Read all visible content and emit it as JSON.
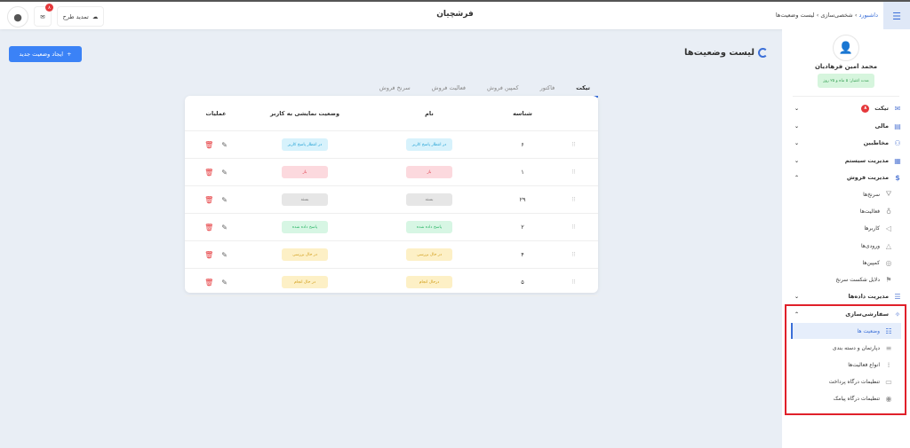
{
  "header": {
    "app_title": "فرشچیان",
    "breadcrumb": [
      "داشبورد",
      "شخصی‌سازی",
      "لیست وضعیت‌ها"
    ],
    "update_plan_label": "تمدید طرح",
    "mail_badge": "۸"
  },
  "profile": {
    "name": "محمد امین فرهادیان",
    "validity": "مدت اعتبار: ۵ ماه و ۲۵ روز"
  },
  "sidebar": {
    "items": [
      {
        "label": "تیکت",
        "icon": "mail-icon",
        "badge": "۸",
        "chevron": "down"
      },
      {
        "label": "مالی",
        "icon": "wallet-icon",
        "chevron": "down"
      },
      {
        "label": "مخاطبین",
        "icon": "users-icon",
        "chevron": "down"
      },
      {
        "label": "مدیریت سیستم",
        "icon": "table-icon",
        "chevron": "down"
      },
      {
        "label": "مدیریت فروش",
        "icon": "dollar-icon",
        "chevron": "up"
      },
      {
        "label": "سرنخ‌ها",
        "icon": "funnel-icon",
        "sub": true
      },
      {
        "label": "فعالیت‌ها",
        "icon": "bulb-icon",
        "sub": true
      },
      {
        "label": "کاربرها",
        "icon": "megaphone-icon",
        "sub": true
      },
      {
        "label": "ورودی‌ها",
        "icon": "triangle-icon",
        "sub": true
      },
      {
        "label": "کمپین‌ها",
        "icon": "target-icon",
        "sub": true
      },
      {
        "label": "دلایل شکست سرنخ",
        "icon": "flag-icon",
        "sub": true
      },
      {
        "label": "مدیریت داده‌ها",
        "icon": "database-icon",
        "chevron": "down"
      },
      {
        "label": "سفارشی‌سازی",
        "icon": "wand-icon",
        "chevron": "up"
      },
      {
        "label": "وضعیت ها",
        "icon": "list-icon",
        "sub": true,
        "active": true
      },
      {
        "label": "دپارتمان و دسته بندی",
        "icon": "lines-icon",
        "sub": true
      },
      {
        "label": "انواع فعالیت‌ها",
        "icon": "grid-icon",
        "sub": true
      },
      {
        "label": "تنظیمات درگاه پرداخت",
        "icon": "card-icon",
        "sub": true
      },
      {
        "label": "تنظیمات درگاه پیامک",
        "icon": "message-icon",
        "sub": true
      }
    ]
  },
  "main": {
    "title": "لیست وضعیت‌ها",
    "new_button": "ایجاد وضعیت جدید",
    "tabs": [
      "تیکت",
      "فاکتور",
      "کمپین فروش",
      "فعالیت فروش",
      "سرنخ فروش"
    ],
    "columns": [
      "شناسه",
      "نام",
      "وضعیت نمایشی به کاربر",
      "عملیات"
    ],
    "rows": [
      {
        "id": "۶",
        "name": "در انتظار پاسخ کاربر",
        "display": "در انتظار پاسخ کاربر",
        "color": "blue"
      },
      {
        "id": "۱",
        "name": "باز",
        "display": "باز",
        "color": "red"
      },
      {
        "id": "۲۹",
        "name": "بسته",
        "display": "بسته",
        "color": "gray"
      },
      {
        "id": "۲",
        "name": "پاسخ داده شده",
        "display": "پاسخ داده شده",
        "color": "green"
      },
      {
        "id": "۴",
        "name": "در حال بررسی",
        "display": "در حال بررسی",
        "color": "yellow"
      },
      {
        "id": "۵",
        "name": "درحال انجام",
        "display": "در حال انجام",
        "color": "yellow"
      }
    ]
  },
  "colors": {
    "blue": [
      "#d7f2fc",
      "#1c9fd3"
    ],
    "red": [
      "#fcd9de",
      "#e0404f"
    ],
    "gray": [
      "#e6e6e6",
      "#777777"
    ],
    "green": [
      "#d7f6e4",
      "#27b463"
    ],
    "yellow": [
      "#fdf0c6",
      "#cf9b12"
    ],
    "accent": "#3b6fd8"
  }
}
